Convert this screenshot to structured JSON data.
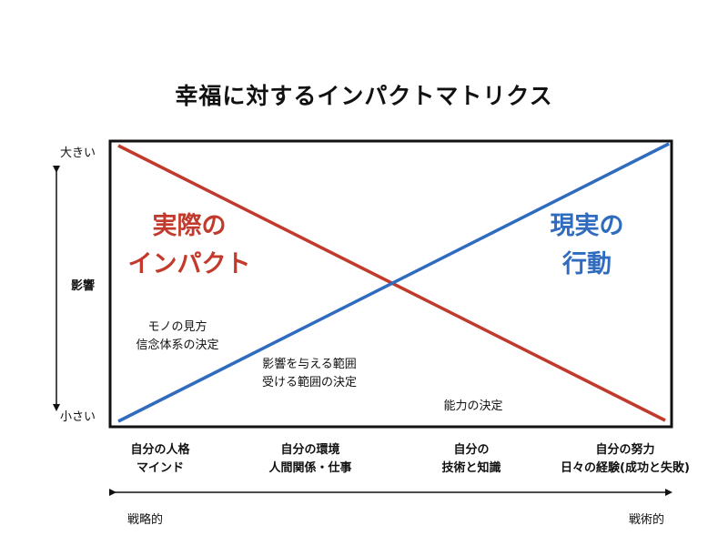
{
  "title": "幸福に対するインパクトマトリクス",
  "y_axis": {
    "top": "大きい",
    "middle": "影響",
    "bottom": "小さい"
  },
  "lines": {
    "red": {
      "label_line1": "実際の",
      "label_line2": "インパクト",
      "color": "#c23a2b"
    },
    "blue": {
      "label_line1": "現実の",
      "label_line2": "行動",
      "color": "#2f6bbf"
    }
  },
  "notes": {
    "note1_line1": "モノの見方",
    "note1_line2": "信念体系の決定",
    "note2_line1": "影響を与える範囲",
    "note2_line2": "受ける範囲の決定",
    "note3": "能力の決定"
  },
  "categories": [
    {
      "line1": "自分の人格",
      "line2": "マインド"
    },
    {
      "line1": "自分の環境",
      "line2": "人間関係・仕事"
    },
    {
      "line1": "自分の",
      "line2": "技術と知識"
    },
    {
      "line1": "自分の努力",
      "line2": "日々の経験(成功と失敗)"
    }
  ],
  "x_axis": {
    "left": "戦略的",
    "right": "戦術的"
  }
}
